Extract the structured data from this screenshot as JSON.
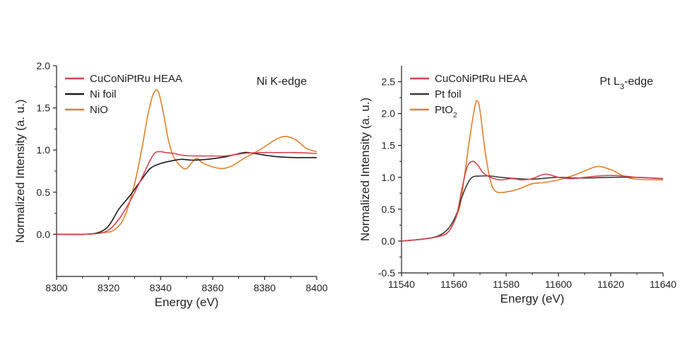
{
  "chart_data": [
    {
      "type": "line",
      "id": "left",
      "annotation_main": "Ni K-edge",
      "annotation_sub": "",
      "annotation_tail": "",
      "xlabel": "Energy (eV)",
      "ylabel": "Normalized Intensity (a. u.)",
      "xlim": [
        8300,
        8400
      ],
      "ylim": [
        -0.5,
        2.0
      ],
      "xticks": [
        8300,
        8320,
        8340,
        8360,
        8380,
        8400
      ],
      "yticks": [
        0.0,
        0.5,
        1.0,
        1.5,
        2.0
      ],
      "ytick_labels": [
        "0.0",
        "0.5",
        "1.0",
        "1.5",
        "2.0"
      ],
      "legend": "top-left",
      "series": [
        {
          "name": "CuCoNiPtRu HEAA",
          "name_sub": "",
          "color": "#d8454d",
          "x": [
            8300,
            8310,
            8316,
            8320,
            8324,
            8328,
            8332,
            8336,
            8338,
            8340,
            8342,
            8345,
            8348,
            8352,
            8358,
            8365,
            8372,
            8378,
            8385,
            8392,
            8400
          ],
          "y": [
            0.0,
            0.0,
            0.01,
            0.05,
            0.18,
            0.38,
            0.62,
            0.88,
            0.97,
            0.98,
            0.97,
            0.96,
            0.94,
            0.93,
            0.93,
            0.93,
            0.96,
            0.97,
            0.97,
            0.97,
            0.96
          ]
        },
        {
          "name": "Ni foil",
          "name_sub": "",
          "color": "#1a1a1a",
          "x": [
            8300,
            8310,
            8316,
            8320,
            8324,
            8328,
            8332,
            8336,
            8340,
            8344,
            8348,
            8352,
            8358,
            8365,
            8372,
            8376,
            8380,
            8385,
            8392,
            8400
          ],
          "y": [
            0.0,
            0.0,
            0.02,
            0.1,
            0.3,
            0.45,
            0.62,
            0.78,
            0.84,
            0.87,
            0.89,
            0.88,
            0.89,
            0.92,
            0.97,
            0.96,
            0.94,
            0.92,
            0.91,
            0.91
          ]
        },
        {
          "name": "NiO",
          "name_sub": "",
          "color": "#e07f2c",
          "x": [
            8300,
            8310,
            8318,
            8322,
            8326,
            8330,
            8333,
            8335,
            8337,
            8339,
            8341,
            8343,
            8345,
            8348,
            8350,
            8352,
            8354,
            8356,
            8360,
            8364,
            8368,
            8372,
            8378,
            8384,
            8388,
            8392,
            8396,
            8400
          ],
          "y": [
            0.0,
            0.0,
            0.02,
            0.05,
            0.2,
            0.6,
            1.05,
            1.4,
            1.65,
            1.7,
            1.45,
            1.12,
            0.92,
            0.8,
            0.78,
            0.85,
            0.9,
            0.85,
            0.8,
            0.78,
            0.82,
            0.9,
            1.0,
            1.12,
            1.16,
            1.12,
            1.02,
            0.98
          ]
        }
      ]
    },
    {
      "type": "line",
      "id": "right",
      "annotation_main": "Pt L",
      "annotation_sub": "3",
      "annotation_tail": "-edge",
      "xlabel": "Energy (eV)",
      "ylabel": "Normalized Intensity (a. u.)",
      "xlim": [
        11540,
        11640
      ],
      "ylim": [
        -0.5,
        2.75
      ],
      "xticks": [
        11540,
        11560,
        11580,
        11600,
        11620,
        11640
      ],
      "yticks": [
        -0.5,
        0.0,
        0.5,
        1.0,
        1.5,
        2.0,
        2.5
      ],
      "ytick_labels": [
        "-0.5",
        "0.0",
        "0.5",
        "1.0",
        "1.5",
        "2.0",
        "2.5"
      ],
      "legend": "top-left",
      "series": [
        {
          "name": "CuCoNiPtRu HEAA",
          "name_sub": "",
          "color": "#d8454d",
          "x": [
            11540,
            11548,
            11554,
            11558,
            11561,
            11563,
            11565,
            11567,
            11569,
            11571,
            11574,
            11578,
            11582,
            11586,
            11590,
            11595,
            11600,
            11605,
            11610,
            11615,
            11620,
            11625,
            11630,
            11640
          ],
          "y": [
            0.0,
            0.03,
            0.07,
            0.15,
            0.4,
            0.8,
            1.15,
            1.25,
            1.2,
            1.08,
            1.0,
            0.96,
            0.98,
            0.96,
            0.98,
            1.05,
            1.0,
            0.98,
            1.0,
            1.02,
            1.03,
            1.02,
            1.0,
            0.98
          ]
        },
        {
          "name": "Pt foil",
          "name_sub": "",
          "color": "#3a3a3a",
          "x": [
            11540,
            11548,
            11554,
            11558,
            11561,
            11563,
            11565,
            11567,
            11570,
            11574,
            11578,
            11584,
            11590,
            11596,
            11600,
            11606,
            11612,
            11620,
            11630,
            11640
          ],
          "y": [
            0.0,
            0.03,
            0.08,
            0.2,
            0.42,
            0.68,
            0.88,
            1.0,
            1.02,
            1.02,
            1.0,
            0.98,
            0.97,
            0.99,
            1.0,
            0.99,
            0.99,
            1.0,
            1.0,
            0.98
          ]
        },
        {
          "name": "PtO",
          "name_sub": "2",
          "color": "#e07f2c",
          "x": [
            11540,
            11548,
            11554,
            11558,
            11562,
            11564,
            11566,
            11568,
            11569,
            11570,
            11572,
            11574,
            11576,
            11580,
            11585,
            11590,
            11595,
            11600,
            11605,
            11610,
            11615,
            11620,
            11625,
            11630,
            11640
          ],
          "y": [
            0.0,
            0.03,
            0.07,
            0.15,
            0.5,
            1.0,
            1.6,
            2.1,
            2.2,
            2.05,
            1.4,
            0.95,
            0.78,
            0.77,
            0.82,
            0.9,
            0.92,
            0.96,
            1.02,
            1.1,
            1.17,
            1.12,
            1.02,
            0.97,
            0.96
          ]
        }
      ]
    }
  ]
}
